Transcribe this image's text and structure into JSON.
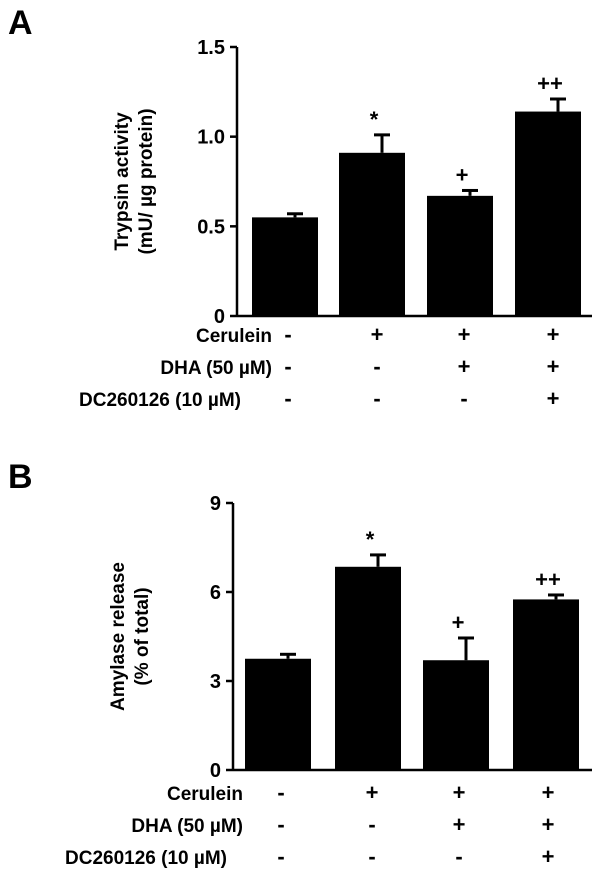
{
  "chart_data": [
    {
      "type": "bar",
      "panel_label": "A",
      "ylabel_line1": "Trypsin activity",
      "ylabel_line2": "(mU/ µg protein)",
      "ylim": [
        0,
        1.5
      ],
      "yticks": [
        "0",
        "0.5",
        "1.0",
        "1.5"
      ],
      "ytick_values": [
        0,
        0.5,
        1.0,
        1.5
      ],
      "values": [
        0.55,
        0.91,
        0.67,
        1.14
      ],
      "errors": [
        0.02,
        0.1,
        0.03,
        0.07
      ],
      "significance": [
        "",
        "*",
        "+",
        "++"
      ],
      "conditions": [
        {
          "label": "Cerulein",
          "signs": [
            "-",
            "+",
            "+",
            "+"
          ]
        },
        {
          "label": "DHA (50 µM)",
          "signs": [
            "-",
            "-",
            "+",
            "+"
          ]
        },
        {
          "label": "DC260126 (10 µM)",
          "signs": [
            "-",
            "-",
            "-",
            "+"
          ]
        }
      ],
      "bar_color": "#000000"
    },
    {
      "type": "bar",
      "panel_label": "B",
      "ylabel_line1": "Amylase release",
      "ylabel_line2": "(% of total)",
      "ylim": [
        0,
        9
      ],
      "yticks": [
        "0",
        "3",
        "6",
        "9"
      ],
      "ytick_values": [
        0,
        3,
        6,
        9
      ],
      "values": [
        3.75,
        6.85,
        3.7,
        5.75
      ],
      "errors": [
        0.15,
        0.4,
        0.75,
        0.15
      ],
      "significance": [
        "",
        "*",
        "+",
        "++"
      ],
      "conditions": [
        {
          "label": "Cerulein",
          "signs": [
            "-",
            "+",
            "+",
            "+"
          ]
        },
        {
          "label": "DHA (50 µM)",
          "signs": [
            "-",
            "-",
            "+",
            "+"
          ]
        },
        {
          "label": "DC260126 (10 µM)",
          "signs": [
            "-",
            "-",
            "-",
            "+"
          ]
        }
      ],
      "bar_color": "#000000"
    }
  ]
}
